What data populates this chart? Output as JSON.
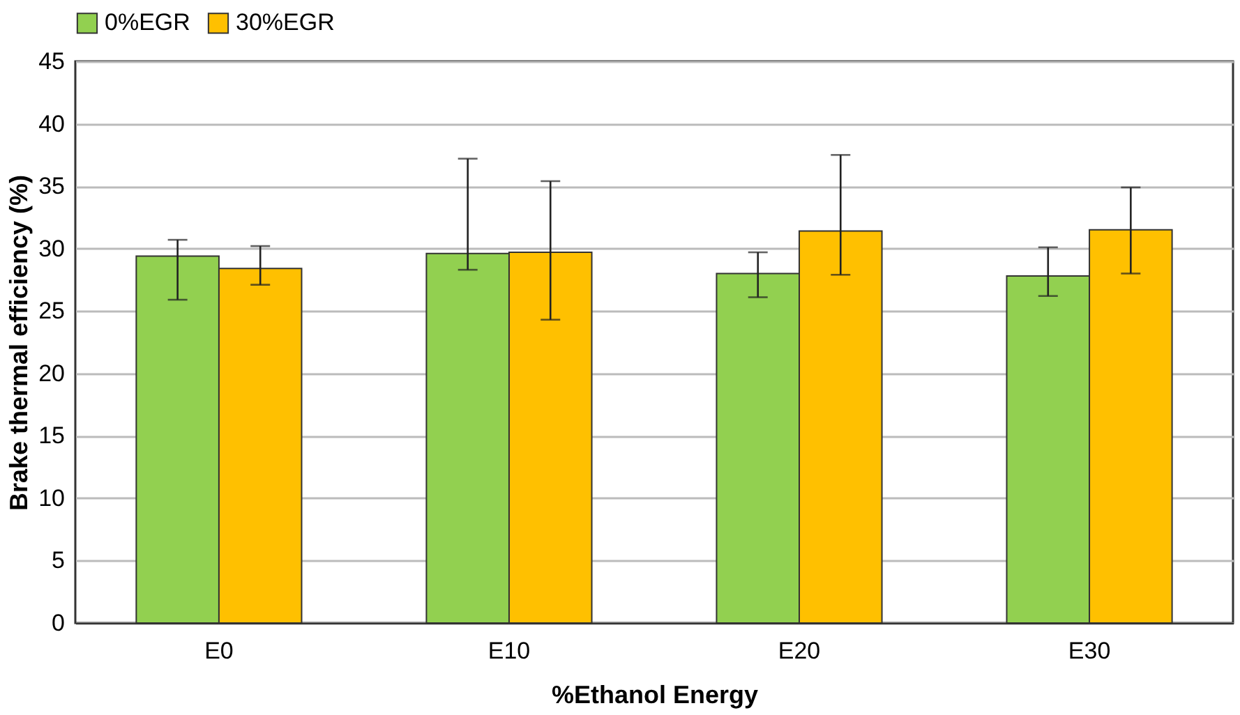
{
  "chart_data": {
    "type": "bar",
    "xlabel": "%Ethanol Energy",
    "ylabel": "Brake thermal efficiency (%)",
    "categories": [
      "E0",
      "E10",
      "E20",
      "E30"
    ],
    "series": [
      {
        "name": "0%EGR",
        "color": "#92d050",
        "values": [
          29.4,
          29.6,
          28.0,
          27.8
        ],
        "errors": [
          [
            25.9,
            30.7
          ],
          [
            28.3,
            37.2
          ],
          [
            26.1,
            29.7
          ],
          [
            26.2,
            30.1
          ]
        ]
      },
      {
        "name": "30%EGR",
        "color": "#ffc000",
        "values": [
          28.4,
          29.7,
          31.4,
          31.5
        ],
        "errors": [
          [
            27.1,
            30.2
          ],
          [
            24.3,
            35.4
          ],
          [
            27.9,
            37.5
          ],
          [
            28.0,
            34.9
          ]
        ]
      }
    ],
    "ylim": [
      0,
      45
    ],
    "yticks": [
      0,
      5,
      10,
      15,
      20,
      25,
      30,
      35,
      40,
      45
    ],
    "grid": "y",
    "legend": "top"
  }
}
